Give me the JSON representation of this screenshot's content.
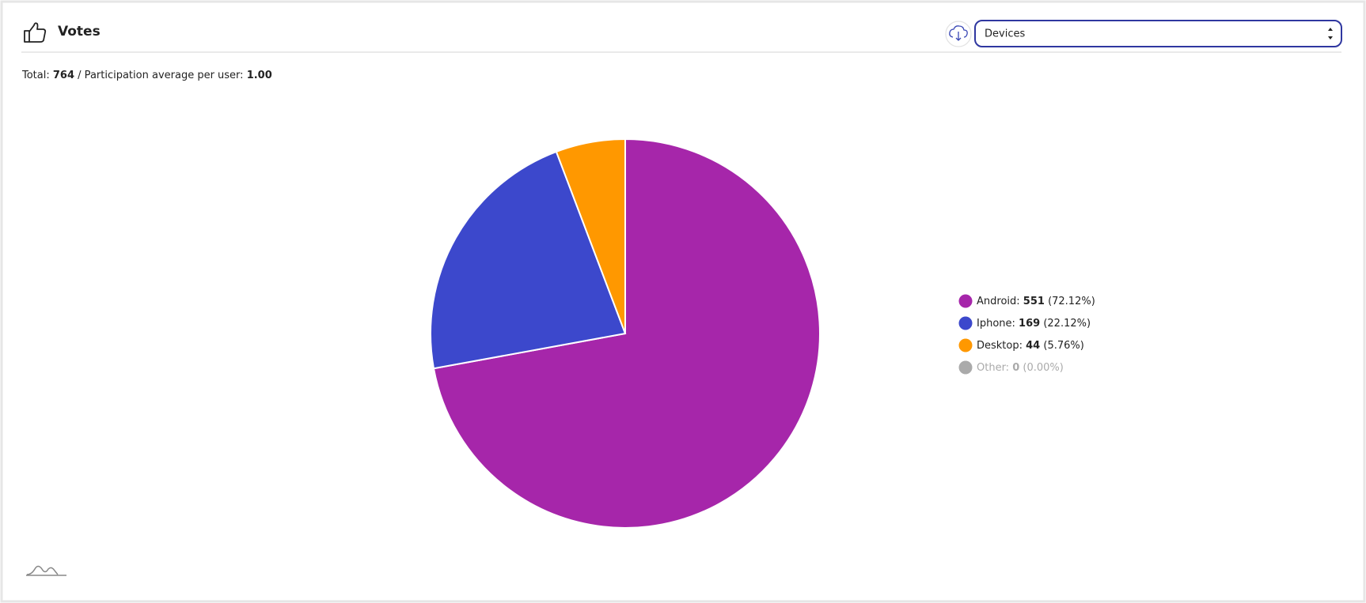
{
  "header": {
    "title": "Votes",
    "selector": "Devices"
  },
  "summary": {
    "total_label": "Total:",
    "total": 764,
    "average_label": "/ Participation average per user:",
    "average": "1.00"
  },
  "chart_data": {
    "type": "pie",
    "categories": [
      "Android:",
      "Iphone:",
      "Desktop:",
      "Other:"
    ],
    "values": [
      551,
      169,
      44,
      0
    ],
    "percent_labels": [
      "(72.12%)",
      "(22.12%)",
      "(5.76%)",
      "(0.00%)"
    ],
    "colors": [
      "#a626aa",
      "#3c48cc",
      "#ff9800",
      "#aaaaaa"
    ]
  }
}
